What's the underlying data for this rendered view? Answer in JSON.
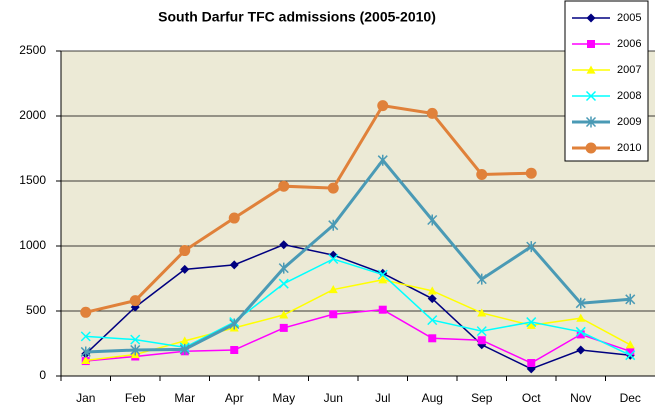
{
  "chart_data": {
    "type": "line",
    "title": "South Darfur TFC admissions (2005-2010)",
    "categories": [
      "Jan",
      "Feb",
      "Mar",
      "Apr",
      "May",
      "Jun",
      "Jul",
      "Aug",
      "Sep",
      "Oct",
      "Nov",
      "Dec"
    ],
    "ylim": [
      0,
      2500
    ],
    "yticks": [
      0,
      500,
      1000,
      1500,
      2000,
      2500
    ],
    "grid": true,
    "legend": "top-right",
    "series": [
      {
        "name": "2005",
        "color": "#000080",
        "marker": "diamond",
        "values": [
          170,
          530,
          820,
          855,
          1010,
          930,
          790,
          595,
          240,
          55,
          200,
          160
        ]
      },
      {
        "name": "2006",
        "color": "#FF00FF",
        "marker": "square",
        "values": [
          115,
          150,
          190,
          200,
          370,
          475,
          510,
          290,
          275,
          100,
          320,
          190
        ]
      },
      {
        "name": "2007",
        "color": "#FFFF00",
        "marker": "triangle",
        "values": [
          120,
          165,
          270,
          370,
          470,
          665,
          740,
          655,
          485,
          390,
          445,
          240
        ]
      },
      {
        "name": "2008",
        "color": "#00FFFF",
        "marker": "x",
        "values": [
          305,
          280,
          220,
          415,
          710,
          900,
          780,
          430,
          345,
          415,
          340,
          160
        ]
      },
      {
        "name": "2009",
        "color": "#4A9AB5",
        "marker": "star",
        "values": [
          185,
          200,
          205,
          400,
          830,
          1160,
          1660,
          1200,
          745,
          995,
          560,
          590
        ]
      },
      {
        "name": "2010",
        "color": "#E0813A",
        "marker": "circle",
        "values": [
          490,
          580,
          965,
          1215,
          1460,
          1445,
          2080,
          2020,
          1550,
          1560,
          null,
          null
        ]
      }
    ]
  }
}
